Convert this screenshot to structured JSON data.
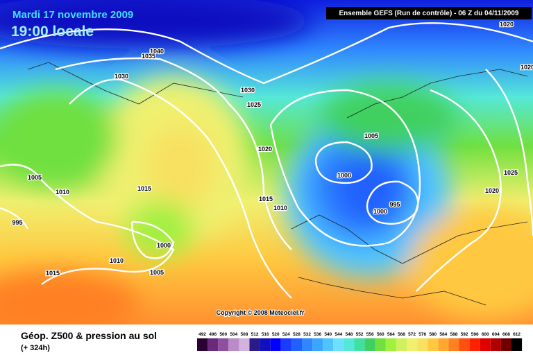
{
  "header": {
    "date": "Mardi 17 novembre 2009",
    "time": "19:00 locale",
    "model": "Ensemble GEFS (Run de contrôle)  -  06 Z du 04/11/2009"
  },
  "copyright": "Copyright © 2008 Meteociel.fr",
  "footer": {
    "title": "Géop. Z500 & pression au sol",
    "lead": "(+ 324h)"
  },
  "isobar_labels": [
    "1020",
    "1040",
    "1035",
    "1030",
    "1030",
    "1025",
    "1020",
    "1005",
    "1000",
    "1000",
    "995",
    "1015",
    "1010",
    "1005",
    "1010",
    "1015",
    "995",
    "1000",
    "1010",
    "1005",
    "1015",
    "1025",
    "1020",
    "1020"
  ],
  "legend": {
    "values": [
      492,
      496,
      500,
      504,
      508,
      512,
      516,
      520,
      524,
      528,
      532,
      536,
      540,
      544,
      548,
      552,
      556,
      560,
      564,
      568,
      572,
      576,
      580,
      584,
      588,
      592,
      596,
      600,
      604,
      608,
      612
    ],
    "colors": [
      "#2b0032",
      "#6a2a7a",
      "#8e4f9e",
      "#b98bc9",
      "#d3b2dc",
      "#2a1a8a",
      "#1010c0",
      "#0000ff",
      "#1a3cff",
      "#2060ff",
      "#2f86ff",
      "#3aa6ff",
      "#4fc4ff",
      "#6ee0ff",
      "#55e8d8",
      "#40e0a0",
      "#40d060",
      "#70e040",
      "#a0f040",
      "#d0f060",
      "#f0f070",
      "#f8e060",
      "#ffc840",
      "#ffa830",
      "#ff8020",
      "#ff5010",
      "#ff2000",
      "#e00000",
      "#b00000",
      "#700000",
      "#000000"
    ]
  }
}
